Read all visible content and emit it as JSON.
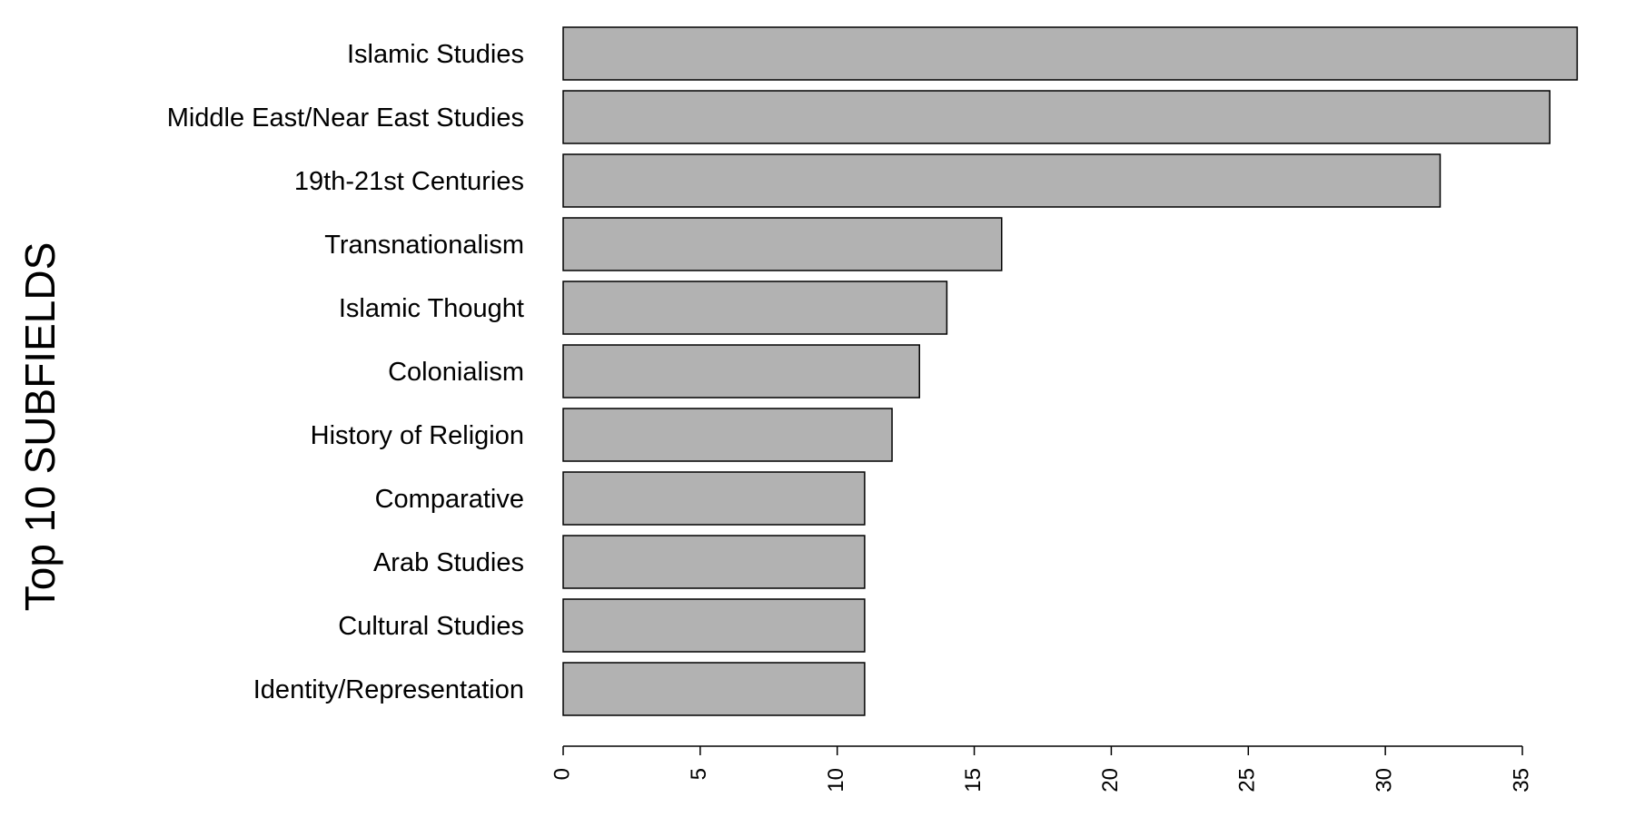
{
  "chart_data": {
    "type": "bar",
    "orientation": "horizontal",
    "title": "",
    "xlabel": "",
    "ylabel": "Top 10 SUBFIELDS",
    "categories": [
      "Islamic Studies",
      "Middle East/Near East Studies",
      "19th-21st Centuries",
      "Transnationalism",
      "Islamic Thought",
      "Colonialism",
      "History of Religion",
      "Comparative",
      "Arab Studies",
      "Cultural Studies",
      "Identity/Representation"
    ],
    "values": [
      37,
      36,
      32,
      16,
      14,
      13,
      12,
      11,
      11,
      11,
      11
    ],
    "xlim": [
      0,
      35
    ],
    "xticks": [
      0,
      5,
      10,
      15,
      20,
      25,
      30,
      35
    ],
    "grid": false,
    "bar_fill": "#b2b2b2",
    "bar_stroke": "#000000"
  }
}
